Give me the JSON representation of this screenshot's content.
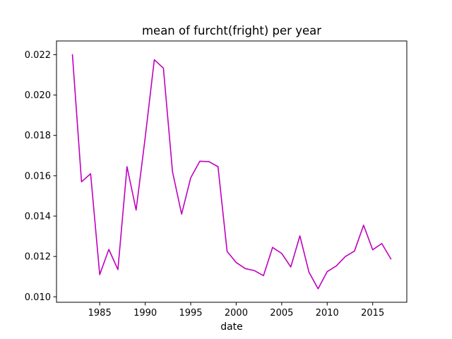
{
  "chart_data": {
    "type": "line",
    "title": "mean of furcht(fright) per year",
    "xlabel": "date",
    "ylabel": "",
    "xlim": [
      1980.25,
      2018.75
    ],
    "ylim": [
      0.00973,
      0.02268
    ],
    "xticks": [
      1985,
      1990,
      1995,
      2000,
      2005,
      2010,
      2015
    ],
    "xtick_labels": [
      "1985",
      "1990",
      "1995",
      "2000",
      "2005",
      "2010",
      "2015"
    ],
    "yticks": [
      0.01,
      0.012,
      0.014,
      0.016,
      0.018,
      0.02,
      0.022
    ],
    "ytick_labels": [
      "0.010",
      "0.012",
      "0.014",
      "0.016",
      "0.018",
      "0.020",
      "0.022"
    ],
    "grid": false,
    "legend": "none",
    "line_color": "#bf00bf",
    "series": [
      {
        "x": [
          1982,
          1983,
          1984,
          1985,
          1986,
          1987,
          1988,
          1989,
          1990,
          1991,
          1992,
          1993,
          1994,
          1995,
          1996,
          1997,
          1998,
          1999,
          2000,
          2001,
          2002,
          2003,
          2004,
          2005,
          2006,
          2007,
          2008,
          2009,
          2010,
          2011,
          2012,
          2013,
          2014,
          2015,
          2016,
          2017
        ],
        "values": [
          0.022,
          0.0157,
          0.0161,
          0.0111,
          0.01235,
          0.01135,
          0.01645,
          0.0143,
          0.0179,
          0.02175,
          0.02133,
          0.0162,
          0.0141,
          0.0159,
          0.01672,
          0.0167,
          0.01645,
          0.01225,
          0.0117,
          0.0114,
          0.0113,
          0.01105,
          0.01245,
          0.01215,
          0.01148,
          0.01302,
          0.01122,
          0.0104,
          0.01125,
          0.01153,
          0.012,
          0.01227,
          0.01355,
          0.01233,
          0.01264,
          0.01188
        ]
      }
    ]
  }
}
